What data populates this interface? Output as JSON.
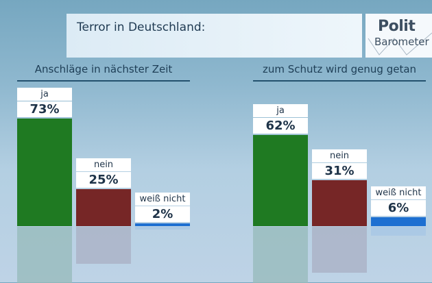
{
  "header": {
    "title": "Terror in Deutschland:",
    "logo_line1": "Polit",
    "logo_line2": "Barometer"
  },
  "colors": {
    "ja": "#1f7a22",
    "nein": "#762626",
    "weiss_nicht": "#1d6fd1"
  },
  "chart_data": [
    {
      "type": "bar",
      "title": "Anschläge in nächster Zeit",
      "categories": [
        "ja",
        "nein",
        "weiß nicht"
      ],
      "values": [
        73,
        25,
        2
      ],
      "value_labels": [
        "73%",
        "25%",
        "2%"
      ],
      "unit": "%",
      "ylim": [
        0,
        100
      ]
    },
    {
      "type": "bar",
      "title": "zum Schutz wird genug getan",
      "categories": [
        "ja",
        "nein",
        "weiß nicht"
      ],
      "values": [
        62,
        31,
        6
      ],
      "value_labels": [
        "62%",
        "31%",
        "6%"
      ],
      "unit": "%",
      "ylim": [
        0,
        100
      ]
    }
  ]
}
